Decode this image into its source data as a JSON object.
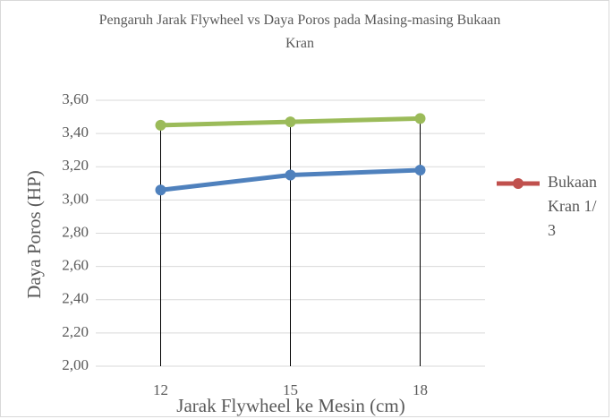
{
  "chart_data": {
    "type": "line",
    "title": "Pengaruh Jarak Flywheel vs Daya Poros pada Masing-masing Bukaan Kran",
    "x_label": "Jarak Flywheel ke Mesin (cm)",
    "y_label": "Daya Poros (HP)",
    "categories": [
      "12",
      "15",
      "18"
    ],
    "series": [
      {
        "color": "#9bbb59",
        "values": [
          3.45,
          3.47,
          3.49
        ]
      },
      {
        "color": "#4f81bd",
        "values": [
          3.06,
          3.15,
          3.18
        ]
      },
      {
        "name": "Bukaan Kran 1/3",
        "color": "#c0504d",
        "values": [
          null,
          null,
          null
        ]
      }
    ],
    "ylim": [
      2,
      3.6
    ],
    "yticks": [
      {
        "value": 2,
        "label": "2,00"
      },
      {
        "value": 2.2,
        "label": "2,20"
      },
      {
        "value": 2.4,
        "label": "2,40"
      },
      {
        "value": 2.6,
        "label": "2,60"
      },
      {
        "value": 2.8,
        "label": "2,80"
      },
      {
        "value": 3,
        "label": "3,00"
      },
      {
        "value": 3.2,
        "label": "3,20"
      },
      {
        "value": 3.4,
        "label": "3,40"
      },
      {
        "value": 3.6,
        "label": "3,60"
      }
    ],
    "grid": true,
    "drop_lines": true,
    "legend": "right"
  }
}
